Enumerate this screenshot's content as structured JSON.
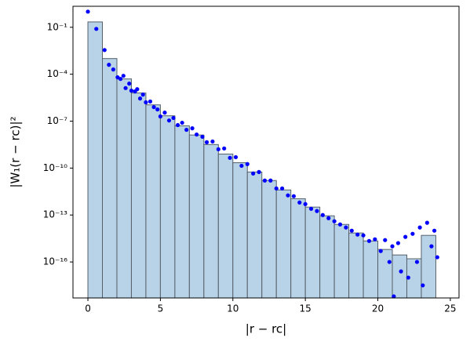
{
  "chart_data": {
    "type": "histogram",
    "xlabel": "|r − rc|",
    "ylabel": "|W₁(r − rc)|²",
    "bins": [
      0,
      1,
      2,
      3,
      4,
      5,
      6,
      7,
      8,
      9,
      10,
      11,
      12,
      13,
      14,
      15,
      16,
      17,
      18,
      19,
      20,
      21,
      22,
      23,
      24
    ],
    "counts": [
      0.22,
      0.001,
      5e-05,
      6.3e-06,
      1.1e-06,
      2.2e-07,
      5e-08,
      1.3e-08,
      3.2e-09,
      7.9e-10,
      2.2e-10,
      5.6e-11,
      1.6e-11,
      4e-12,
      1.1e-12,
      3.2e-13,
      8.9e-14,
      2.5e-14,
      7.1e-15,
      2.2e-15,
      6.3e-16,
      2.8e-16,
      1.6e-16,
      5e-15
    ],
    "color": "#b8d3e7",
    "edgecolor": "#55606a",
    "scatter": {
      "color": "#0000ff",
      "x": [
        0,
        0.58,
        1.15,
        1.45,
        1.75,
        2.05,
        2.25,
        2.45,
        2.6,
        2.85,
        3.0,
        3.25,
        3.4,
        3.6,
        3.8,
        4.0,
        4.3,
        4.55,
        4.8,
        5.0,
        5.3,
        5.6,
        5.9,
        6.2,
        6.5,
        6.8,
        7.2,
        7.5,
        7.9,
        8.2,
        8.6,
        9.0,
        9.4,
        9.8,
        10.2,
        10.6,
        11.0,
        11.4,
        11.8,
        12.2,
        12.6,
        13.0,
        13.4,
        13.8,
        14.2,
        14.6,
        15.0,
        15.4,
        15.8,
        16.2,
        16.6,
        17.0,
        17.4,
        17.8,
        18.2,
        18.6,
        19.0,
        19.4,
        19.8,
        20.2,
        20.5,
        20.8,
        21.0,
        21.1,
        21.4,
        21.6,
        21.9,
        22.1,
        22.4,
        22.7,
        22.9,
        23.1,
        23.4,
        23.7,
        23.9,
        24.1
      ],
      "y": [
        1,
        0.079,
        0.0035,
        0.0004,
        0.0002,
        6.3e-05,
        5e-05,
        7.9e-05,
        1.3e-05,
        2.5e-05,
        8.9e-06,
        7.9e-06,
        1.1e-05,
        2.8e-06,
        5e-06,
        1.6e-06,
        1.8e-06,
        7.9e-07,
        5.6e-07,
        2e-07,
        3.5e-07,
        1.1e-07,
        1.6e-07,
        5.6e-08,
        7.9e-08,
        2.8e-08,
        3.5e-08,
        1.4e-08,
        1e-08,
        4.5e-09,
        5e-09,
        1.6e-09,
        1.8e-09,
        4.5e-10,
        5e-10,
        1.4e-10,
        1.8e-10,
        4.5e-11,
        5.6e-11,
        1.6e-11,
        1.6e-11,
        5e-12,
        5e-12,
        1.8e-12,
        1.6e-12,
        6.3e-13,
        5e-13,
        2.5e-13,
        1.8e-13,
        1e-13,
        6.3e-14,
        4e-14,
        2.5e-14,
        1.6e-14,
        1e-14,
        5.6e-15,
        5e-15,
        2.2e-15,
        2.8e-15,
        5e-16,
        2.5e-15,
        1e-16,
        1e-15,
        6.3e-19,
        1.6e-15,
        2.5e-17,
        4e-15,
        1e-17,
        6.3e-15,
        1e-16,
        1.6e-14,
        3.2e-18,
        3.2e-14,
        1e-15,
        1e-14,
        2e-16
      ]
    },
    "xlim": [
      -1.03,
      25.6
    ],
    "xticks": [
      0,
      5,
      10,
      15,
      20,
      25
    ],
    "ylim": [
      5e-19,
      2.2
    ],
    "yscale": "log",
    "yticks": [
      {
        "value": 0.1,
        "label": "10⁻¹"
      },
      {
        "value": 0.0001,
        "label": "10⁻⁴"
      },
      {
        "value": 1e-07,
        "label": "10⁻⁷"
      },
      {
        "value": 1e-10,
        "label": "10⁻¹⁰"
      },
      {
        "value": 1e-13,
        "label": "10⁻¹³"
      },
      {
        "value": 1e-16,
        "label": "10⁻¹⁶"
      }
    ]
  }
}
